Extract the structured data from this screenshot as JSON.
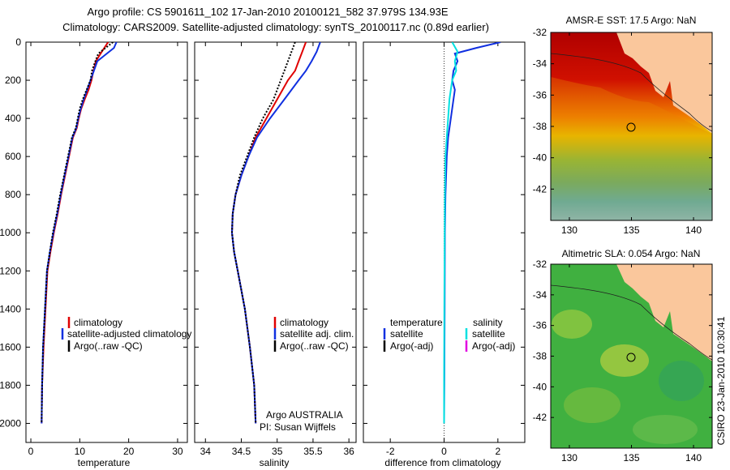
{
  "title_line1": "Argo profile: CS 5901611_102 17-Jan-2010 20100121_582 37.979S 134.93E",
  "title_line2": "Climatology: CARS2009. Satellite-adjusted climatology: synTS_20100117.nc (0.89d earlier)",
  "credit": "CSIRO 23-Jan-2010 10:30:41",
  "chart_data": [
    {
      "type": "line",
      "xlabel": "temperature",
      "ylabel": "",
      "xlim": [
        -1,
        32
      ],
      "ylim": [
        2100,
        0
      ],
      "xticks": [
        0,
        10,
        20,
        30
      ],
      "yticks": [
        0,
        200,
        400,
        600,
        800,
        1000,
        1200,
        1400,
        1600,
        1800,
        2000
      ],
      "legend": [
        "climatology",
        "satellite-adjusted climatology",
        "Argo(..raw -QC)"
      ],
      "series": [
        {
          "name": "climatology",
          "color": "#e00000",
          "x": [
            15.8,
            14.5,
            13.3,
            12.8,
            12.4,
            11.8,
            11.0,
            10.3,
            9.8,
            9.4,
            8.6,
            7.8,
            7.0,
            6.2,
            5.5,
            4.7,
            4.0,
            3.4,
            3.0,
            2.6,
            2.3,
            2.2
          ],
          "y": [
            0,
            50,
            100,
            150,
            200,
            250,
            300,
            350,
            400,
            450,
            500,
            600,
            700,
            800,
            900,
            1000,
            1100,
            1200,
            1400,
            1600,
            1800,
            2000
          ]
        },
        {
          "name": "satellite-adjusted climatology",
          "color": "#1030e0",
          "x": [
            17.5,
            17.0,
            13.6,
            12.9,
            12.2,
            11.5,
            10.8,
            10.2,
            9.7,
            9.3,
            8.5,
            7.7,
            6.9,
            6.1,
            5.4,
            4.6,
            3.9,
            3.3,
            2.9,
            2.5,
            2.3,
            2.2
          ],
          "y": [
            0,
            30,
            100,
            150,
            200,
            250,
            300,
            350,
            400,
            450,
            500,
            600,
            700,
            800,
            900,
            1000,
            1100,
            1200,
            1400,
            1600,
            1800,
            2000
          ]
        },
        {
          "name": "Argo(..raw -QC)",
          "color": "#000000",
          "x": [
            16.8,
            13.8,
            13.2,
            12.5,
            12.2,
            11.4,
            10.6,
            10.0,
            9.6,
            9.2,
            8.4,
            7.6,
            6.8,
            6.0,
            5.3,
            4.5,
            3.9,
            3.3,
            2.9,
            2.5,
            2.3,
            2.2
          ],
          "y": [
            0,
            60,
            100,
            150,
            200,
            250,
            300,
            350,
            400,
            450,
            500,
            600,
            700,
            800,
            900,
            1000,
            1100,
            1200,
            1400,
            1600,
            1800,
            2000
          ]
        }
      ]
    },
    {
      "type": "line",
      "xlabel": "salinity",
      "ylabel": "",
      "xlim": [
        33.85,
        36.1
      ],
      "ylim": [
        2100,
        0
      ],
      "xticks": [
        34,
        34.5,
        35,
        35.5,
        36
      ],
      "legend": [
        "climatology",
        "satellite adj. clim.",
        "Argo(..raw -QC)"
      ],
      "series": [
        {
          "name": "climatology",
          "color": "#e00000",
          "x": [
            35.4,
            35.35,
            35.3,
            35.25,
            35.15,
            35.0,
            34.85,
            34.7,
            34.6,
            34.5,
            34.42,
            34.38,
            34.37,
            34.4,
            34.45,
            34.55,
            34.62,
            34.68,
            34.7
          ],
          "y": [
            0,
            50,
            100,
            150,
            200,
            300,
            400,
            500,
            600,
            700,
            800,
            900,
            1000,
            1100,
            1200,
            1400,
            1600,
            1800,
            2000
          ]
        },
        {
          "name": "satellite adj. clim.",
          "color": "#1030e0",
          "x": [
            35.6,
            35.55,
            35.48,
            35.4,
            35.3,
            35.1,
            34.9,
            34.72,
            34.6,
            34.5,
            34.42,
            34.38,
            34.37,
            34.4,
            34.45,
            34.55,
            34.62,
            34.68,
            34.7
          ],
          "y": [
            0,
            50,
            100,
            150,
            200,
            300,
            400,
            500,
            600,
            700,
            800,
            900,
            1000,
            1100,
            1200,
            1400,
            1600,
            1800,
            2000
          ]
        },
        {
          "name": "Argo(..raw -QC)",
          "color": "#000000",
          "x": [
            35.25,
            35.2,
            35.15,
            35.1,
            35.05,
            34.95,
            34.8,
            34.68,
            34.58,
            34.48,
            34.42,
            34.38,
            34.37,
            34.4,
            34.45,
            34.55,
            34.62,
            34.68,
            34.7
          ],
          "y": [
            0,
            50,
            100,
            150,
            200,
            300,
            400,
            500,
            600,
            700,
            800,
            900,
            1000,
            1100,
            1200,
            1400,
            1600,
            1800,
            2000
          ]
        }
      ],
      "annotation_line1": "Argo AUSTRALIA",
      "annotation_line2": "PI: Susan Wijffels"
    },
    {
      "type": "line",
      "xlabel": "difference from climatology",
      "ylabel": "",
      "xlim": [
        -3,
        3
      ],
      "ylim": [
        2100,
        0
      ],
      "xticks": [
        -2,
        0,
        2
      ],
      "legend_temperature": [
        "temperature",
        "satellite",
        "Argo(-adj)"
      ],
      "legend_salinity": [
        "salinity",
        "satellite",
        "Argo(-adj)"
      ],
      "series": [
        {
          "name": "temperature satellite",
          "color": "#1030e0",
          "x": [
            2.1,
            1.2,
            0.4,
            0.5,
            0.35,
            0.3,
            0.4,
            0.35,
            0.25,
            0.15,
            0.1,
            0.05,
            0.03,
            0.02,
            0.01,
            0.0
          ],
          "y": [
            0,
            30,
            60,
            100,
            150,
            200,
            250,
            300,
            400,
            500,
            600,
            800,
            1000,
            1400,
            1800,
            2000
          ]
        },
        {
          "name": "salinity satellite",
          "color": "#00e0e0",
          "x": [
            0.3,
            0.5,
            0.4,
            0.45,
            0.3,
            0.25,
            0.2,
            0.15,
            0.1,
            0.05,
            0.03,
            0.02,
            0.01,
            0.0,
            0.0
          ],
          "y": [
            0,
            50,
            100,
            150,
            200,
            250,
            300,
            400,
            500,
            600,
            800,
            1000,
            1400,
            1800,
            2000
          ]
        }
      ]
    }
  ],
  "maps": [
    {
      "title": "AMSR-E SST: 17.5 Argo: NaN",
      "yticks": [
        "-32",
        "-34",
        "-36",
        "-38",
        "-40",
        "-42"
      ],
      "xticks": [
        "130",
        "135",
        "140"
      ]
    },
    {
      "title": "Altimetric SLA: 0.054 Argo: NaN",
      "yticks": [
        "-32",
        "-34",
        "-36",
        "-38",
        "-40",
        "-42"
      ],
      "xticks": [
        "130",
        "135",
        "140"
      ]
    }
  ]
}
